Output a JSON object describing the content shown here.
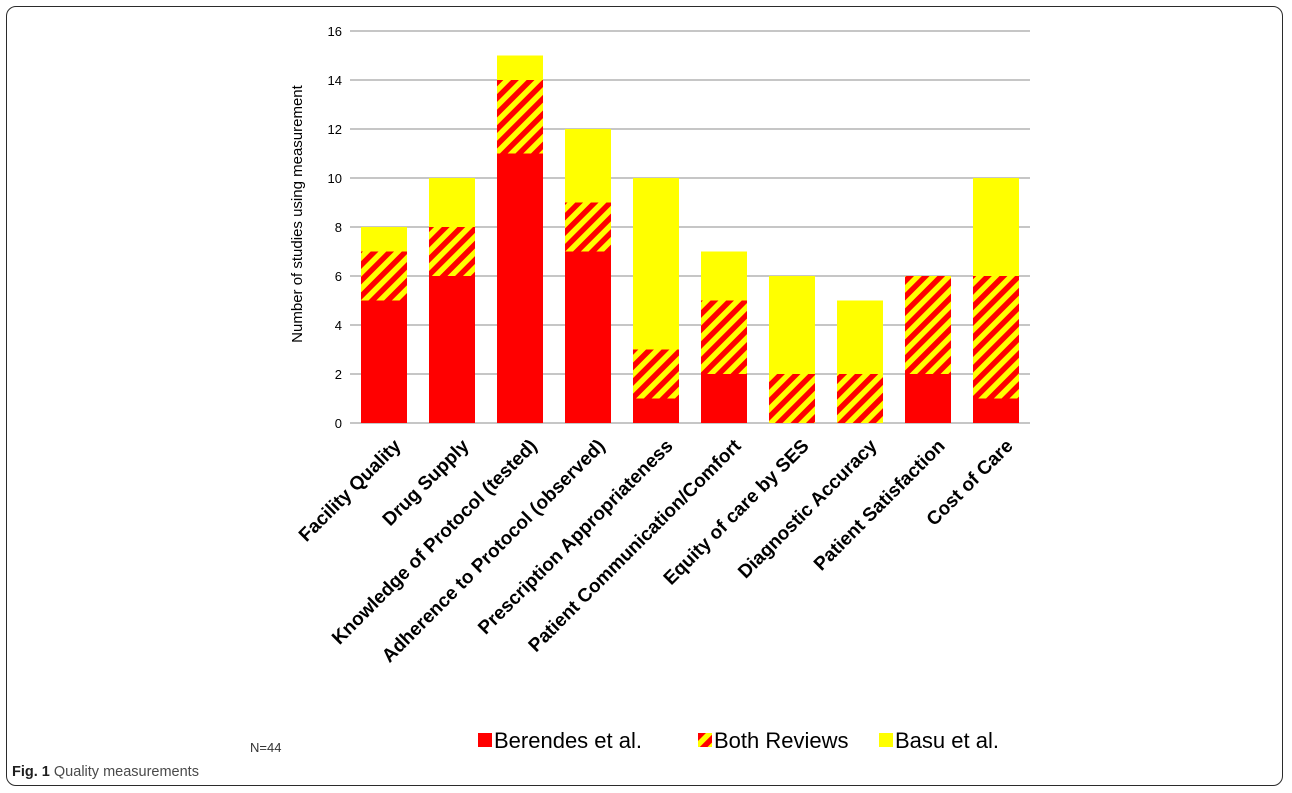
{
  "chart_data": {
    "type": "bar",
    "stacked": true,
    "categories": [
      "Facility Quality",
      "Drug Supply",
      "Knowledge of Protocol (tested)",
      "Adherence to Protocol (observed)",
      "Prescription Appropriateness",
      "Patient Communication/Comfort",
      "Equity of care by SES",
      "Diagnostic Accuracy",
      "Patient Satisfaction",
      "Cost of Care"
    ],
    "series": [
      {
        "name": "Berendes et al.",
        "color": "#ff0000",
        "pattern": "solid",
        "values": [
          5,
          6,
          11,
          7,
          1,
          2,
          0,
          0,
          2,
          1
        ]
      },
      {
        "name": "Both Reviews",
        "color": "#ff0000",
        "pattern": "hatched-red-yellow",
        "values": [
          2,
          2,
          3,
          2,
          2,
          3,
          2,
          2,
          4,
          5
        ]
      },
      {
        "name": "Basu et al.",
        "color": "#ffff00",
        "pattern": "solid",
        "values": [
          1,
          2,
          1,
          3,
          7,
          2,
          4,
          3,
          0,
          4
        ]
      }
    ],
    "ylabel": "Number of studies using measurement",
    "ylim": [
      0,
      16
    ],
    "yticks": [
      0,
      2,
      4,
      6,
      8,
      10,
      12,
      14,
      16
    ],
    "grid": true,
    "legend_position": "bottom"
  },
  "annotation": "N=44",
  "caption": {
    "label": "Fig. 1",
    "text": "Quality measurements"
  }
}
